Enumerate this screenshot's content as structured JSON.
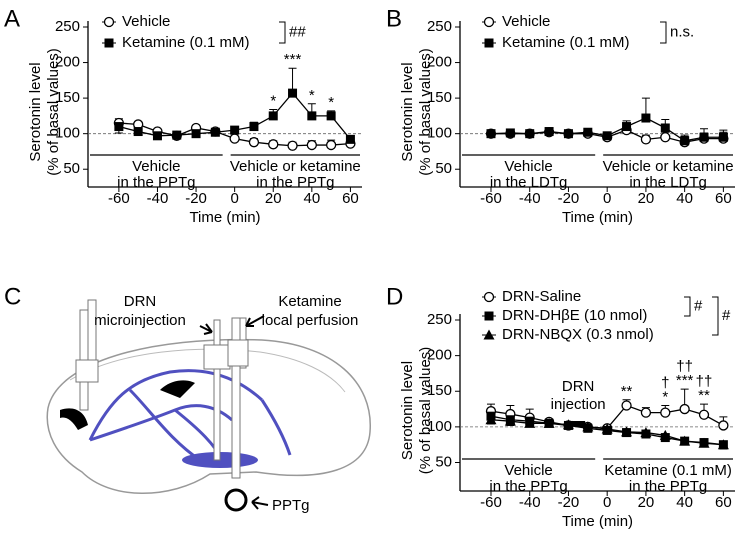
{
  "chart_data": [
    {
      "panel": "A",
      "type": "line",
      "x": [
        -60,
        -50,
        -40,
        -30,
        -20,
        -10,
        0,
        10,
        20,
        30,
        40,
        50,
        60
      ],
      "series": [
        {
          "name": "Vehicle",
          "marker": "open-circle",
          "color": "#000000",
          "values": [
            115,
            113,
            103,
            97,
            108,
            103,
            93,
            88,
            85,
            83,
            84,
            84,
            86
          ],
          "errors": [
            6,
            4,
            4,
            3,
            3,
            3,
            3,
            5,
            5,
            5,
            6,
            7,
            3
          ]
        },
        {
          "name": "Ketamine (0.1 mM)",
          "marker": "filled-square",
          "color": "#000000",
          "values": [
            110,
            103,
            97,
            98,
            100,
            102,
            105,
            110,
            125,
            157,
            125,
            125,
            92
          ],
          "errors": [
            9,
            5,
            4,
            3,
            3,
            3,
            4,
            6,
            9,
            35,
            17,
            7,
            5
          ]
        }
      ],
      "significance": [
        {
          "series": [
            0,
            1
          ],
          "label": "##"
        }
      ],
      "annotations": [
        {
          "x": 20,
          "lines": [
            "*"
          ]
        },
        {
          "x": 30,
          "lines": [
            "***"
          ]
        },
        {
          "x": 40,
          "lines": [
            "*"
          ]
        },
        {
          "x": 50,
          "lines": [
            "*"
          ]
        }
      ],
      "periods": [
        [
          "Vehicle",
          "in the PPTg"
        ],
        [
          "Vehicle or ketamine",
          "in the PPTg"
        ]
      ],
      "xlabel": "Time (min)",
      "ylabel": [
        "Serotonin level",
        "(% of basal values)"
      ],
      "xlim": [
        -76,
        66
      ],
      "ylim": [
        25,
        250
      ],
      "xticks": [
        -60,
        -40,
        -20,
        0,
        20,
        40,
        60
      ],
      "yticks": [
        50,
        100,
        150,
        200,
        250
      ],
      "reference_line": 100
    },
    {
      "panel": "B",
      "type": "line",
      "x": [
        -60,
        -50,
        -40,
        -30,
        -20,
        -10,
        0,
        10,
        20,
        30,
        40,
        50,
        60
      ],
      "series": [
        {
          "name": "Vehicle",
          "marker": "open-circle",
          "color": "#000000",
          "values": [
            100,
            100,
            100,
            102,
            100,
            100,
            95,
            105,
            92,
            95,
            88,
            93,
            93
          ],
          "errors": [
            5,
            5,
            5,
            5,
            4,
            5,
            6,
            8,
            6,
            7,
            8,
            8,
            9
          ]
        },
        {
          "name": "Ketamine (0.1 mM)",
          "marker": "filled-square",
          "color": "#000000",
          "values": [
            100,
            101,
            100,
            103,
            100,
            102,
            97,
            110,
            122,
            108,
            90,
            95,
            95
          ],
          "errors": [
            4,
            5,
            4,
            5,
            4,
            5,
            5,
            8,
            28,
            12,
            8,
            12,
            10
          ]
        }
      ],
      "significance": [
        {
          "series": [
            0,
            1
          ],
          "label": "n.s."
        }
      ],
      "annotations": [],
      "periods": [
        [
          "Vehicle",
          "in the LDTg"
        ],
        [
          "Vehicle or ketamine",
          "in the LDTg"
        ]
      ],
      "xlabel": "Time (min)",
      "ylabel": [
        "Serotonin level",
        "(% of basal values)"
      ],
      "xlim": [
        -76,
        66
      ],
      "ylim": [
        25,
        250
      ],
      "xticks": [
        -60,
        -40,
        -20,
        0,
        20,
        40,
        60
      ],
      "yticks": [
        50,
        100,
        150,
        200,
        250
      ],
      "reference_line": 100
    },
    {
      "panel": "D",
      "type": "line",
      "x": [
        -60,
        -50,
        -40,
        -30,
        -20,
        -10,
        0,
        10,
        20,
        30,
        40,
        50,
        60
      ],
      "series": [
        {
          "name": "DRN-Saline",
          "marker": "open-circle",
          "color": "#000000",
          "values": [
            122,
            118,
            113,
            107,
            102,
            100,
            98,
            130,
            120,
            120,
            125,
            117,
            102
          ],
          "errors": [
            10,
            12,
            12,
            4,
            5,
            4,
            4,
            8,
            7,
            10,
            28,
            15,
            12
          ]
        },
        {
          "name": "DRN-DHβE (10 nmol)",
          "marker": "filled-square",
          "color": "#000000",
          "values": [
            115,
            110,
            108,
            105,
            102,
            98,
            95,
            92,
            90,
            85,
            80,
            78,
            75
          ],
          "errors": [
            8,
            7,
            6,
            4,
            4,
            4,
            4,
            5,
            4,
            5,
            4,
            4,
            6
          ]
        },
        {
          "name": "DRN-NBQX (0.3 nmol)",
          "marker": "filled-triangle",
          "color": "#000000",
          "values": [
            110,
            108,
            105,
            105,
            103,
            100,
            97,
            93,
            92,
            88,
            80,
            77,
            75
          ],
          "errors": [
            6,
            6,
            5,
            4,
            4,
            4,
            4,
            4,
            4,
            4,
            4,
            4,
            4
          ]
        }
      ],
      "significance": [
        {
          "series": [
            0,
            1
          ],
          "label": "#"
        },
        {
          "series": [
            0,
            2
          ],
          "label": "#"
        }
      ],
      "annotations": [
        {
          "x": 10,
          "lines": [
            "**"
          ]
        },
        {
          "x": 30,
          "lines": [
            "†",
            "*"
          ]
        },
        {
          "x": 40,
          "lines": [
            "††",
            "***"
          ]
        },
        {
          "x": 50,
          "lines": [
            "††",
            "**"
          ]
        }
      ],
      "event": {
        "x": -15,
        "label": [
          "DRN",
          "injection"
        ]
      },
      "periods": [
        [
          "Vehicle",
          "in the PPTg"
        ],
        [
          "Ketamine (0.1 mM)",
          "in the PPTg"
        ]
      ],
      "xlabel": "Time (min)",
      "ylabel": [
        "Serotonin level",
        "(% of basal values)"
      ],
      "xlim": [
        -76,
        66
      ],
      "ylim": [
        10,
        250
      ],
      "xticks": [
        -60,
        -40,
        -20,
        0,
        20,
        40,
        60
      ],
      "yticks": [
        50,
        100,
        150,
        200,
        250
      ],
      "reference_line": 100
    }
  ],
  "diagram": {
    "panel": "C",
    "labels": [
      [
        "DRN",
        "microinjection"
      ],
      [
        "Ketamine",
        "local perfusion"
      ],
      [
        "PPTg"
      ]
    ]
  }
}
